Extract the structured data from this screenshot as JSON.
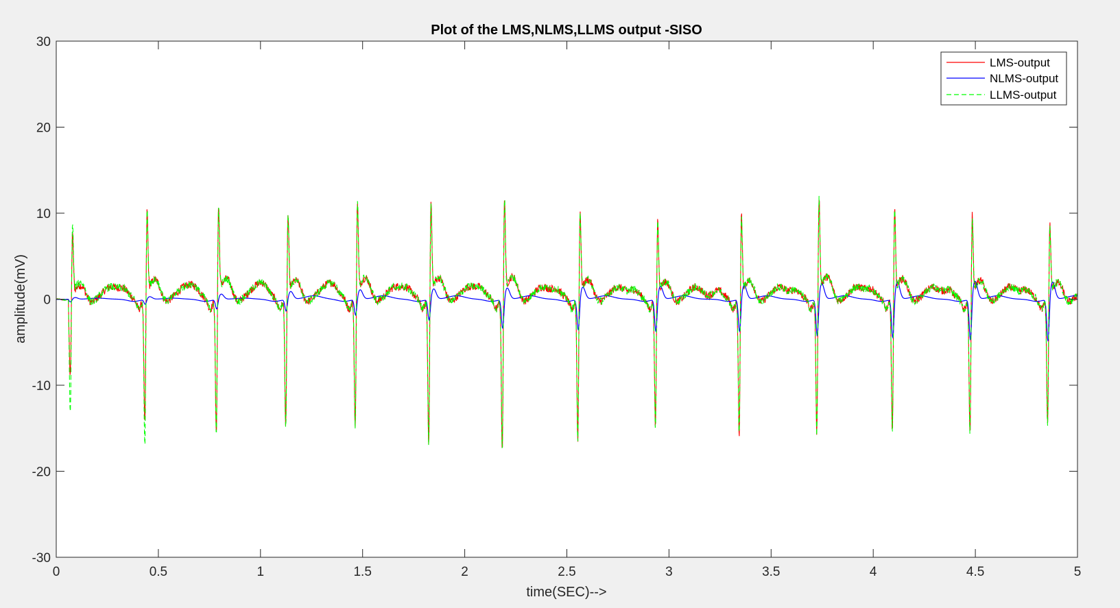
{
  "chart_data": {
    "type": "line",
    "title": "Plot of the LMS,NLMS,LLMS output -SISO",
    "xlabel": "time(SEC)-->",
    "ylabel": "amplitude(mV)",
    "xlim": [
      0,
      5
    ],
    "ylim": [
      -30,
      30
    ],
    "xticks": [
      0,
      0.5,
      1,
      1.5,
      2,
      2.5,
      3,
      3.5,
      4,
      4.5,
      5
    ],
    "xtick_labels": [
      "0",
      "0.5",
      "1",
      "1.5",
      "2",
      "2.5",
      "3",
      "3.5",
      "4",
      "4.5",
      "5"
    ],
    "yticks": [
      -30,
      -20,
      -10,
      0,
      10,
      20,
      30
    ],
    "ytick_labels": [
      "-30",
      "-20",
      "-10",
      "0",
      "10",
      "20",
      "30"
    ],
    "grid": false,
    "legend_position": "top-right",
    "beat_times": [
      0.075,
      0.44,
      0.79,
      1.13,
      1.47,
      1.83,
      2.19,
      2.56,
      2.94,
      3.35,
      3.73,
      4.1,
      4.48,
      4.86
    ],
    "series": [
      {
        "name": "LMS-output",
        "color": "#ff0000",
        "style": "solid",
        "r_peaks": [
          7.5,
          10.5,
          11,
          10,
          11.5,
          11.5,
          12,
          10.5,
          9.5,
          10,
          12,
          11,
          10,
          9
        ],
        "s_troughs": [
          -10,
          -16,
          -17,
          -16,
          -16.5,
          -18,
          -19,
          -17.5,
          -16,
          -17,
          -17,
          -17,
          -17,
          -15.5
        ]
      },
      {
        "name": "NLMS-output",
        "color": "#0000ff",
        "style": "solid",
        "r_peaks": [
          0.2,
          0.3,
          0.6,
          0.9,
          1.1,
          1.2,
          1.3,
          1.4,
          1.5,
          1.6,
          1.8,
          2.0,
          2.1,
          2.0
        ],
        "s_troughs": [
          -0.3,
          -0.6,
          -1.2,
          -1.5,
          -2.0,
          -2.6,
          -3.6,
          -3.8,
          -4.0,
          -4.0,
          -4.5,
          -4.8,
          -5.0,
          -5.2
        ]
      },
      {
        "name": "LLMS-output",
        "color": "#00ff00",
        "style": "dashed",
        "r_peaks": [
          9,
          11,
          11,
          10,
          11.5,
          11.5,
          12,
          10.5,
          9.5,
          10,
          12,
          11,
          10,
          9
        ],
        "s_troughs": [
          -14.5,
          -18.5,
          -17,
          -16.5,
          -16.5,
          -18,
          -19,
          -17.5,
          -16,
          -17,
          -17,
          -17,
          -17,
          -15.5
        ]
      }
    ]
  }
}
